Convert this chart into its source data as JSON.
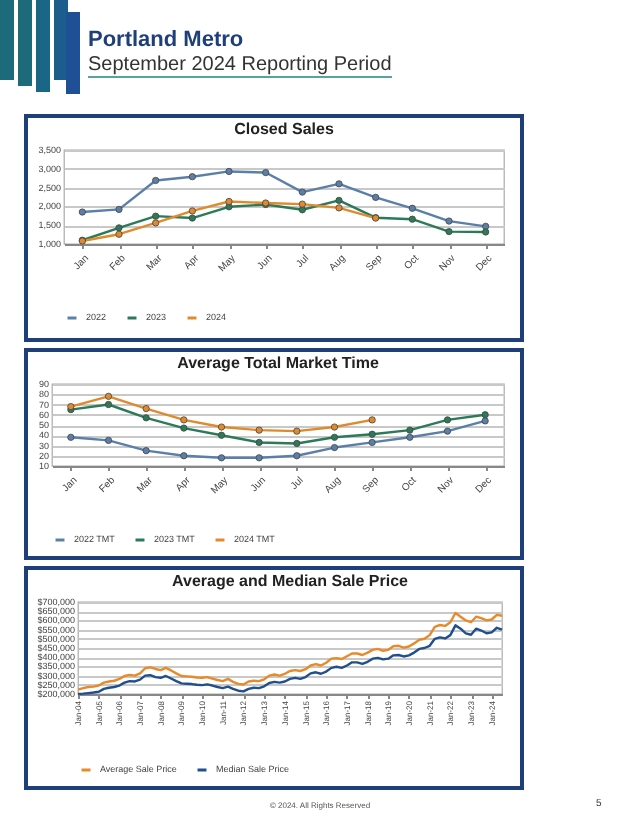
{
  "chart_data": [
    {
      "type": "line",
      "title": "Closed Sales",
      "annotations": [
        "Portland Metro",
        "September 2024 Reporting Period"
      ],
      "categories": [
        "Jan",
        "Feb",
        "Mar",
        "Apr",
        "May",
        "Jun",
        "Jul",
        "Aug",
        "Sep",
        "Oct",
        "Nov",
        "Dec"
      ],
      "series": [
        {
          "name": "2022",
          "color": "#5a7fa8",
          "values": [
            1850,
            1920,
            2690,
            2790,
            2930,
            2900,
            2380,
            2600,
            2240,
            1950,
            1610,
            1470
          ]
        },
        {
          "name": "2023",
          "color": "#2c7a57",
          "values": [
            1100,
            1430,
            1740,
            1690,
            1990,
            2050,
            1910,
            2160,
            1700,
            1660,
            1330,
            1320
          ]
        },
        {
          "name": "2024",
          "color": "#e08a2e",
          "values": [
            1080,
            1260,
            1560,
            1880,
            2130,
            2090,
            2060,
            1960,
            1690,
            null,
            null,
            null
          ]
        }
      ],
      "ylim": [
        1000,
        3500
      ],
      "yticks": [
        {
          "value": 1000,
          "label": "1,000"
        },
        {
          "value": 1500,
          "label": "1,500"
        },
        {
          "value": 2000,
          "label": "2,000"
        },
        {
          "value": 2500,
          "label": "2,500"
        },
        {
          "value": 3000,
          "label": "3,000"
        },
        {
          "value": 3500,
          "label": "3,500"
        }
      ],
      "grid": "y",
      "legend": "bottom",
      "marker": "circle",
      "line_style": "solid"
    },
    {
      "type": "line",
      "title": "Average Total Market Time",
      "categories": [
        "Jan",
        "Feb",
        "Mar",
        "Apr",
        "May",
        "Jun",
        "Jul",
        "Aug",
        "Sep",
        "Oct",
        "Nov",
        "Dec"
      ],
      "series": [
        {
          "name": "2022 TMT",
          "color": "#5a7fa8",
          "values": [
            38,
            35,
            25,
            20,
            18,
            18,
            20,
            28,
            33,
            38,
            44,
            54
          ]
        },
        {
          "name": "2023 TMT",
          "color": "#2c7a57",
          "values": [
            65,
            70,
            57,
            47,
            40,
            33,
            32,
            38,
            41,
            45,
            55,
            60
          ]
        },
        {
          "name": "2024 TMT",
          "color": "#e08a2e",
          "values": [
            68,
            78,
            66,
            55,
            48,
            45,
            44,
            48,
            55,
            null,
            null,
            null
          ]
        }
      ],
      "ylim": [
        10,
        90
      ],
      "yticks": [
        10,
        20,
        30,
        40,
        50,
        60,
        70,
        80,
        90
      ],
      "grid": "y",
      "legend": "bottom",
      "marker": "circle",
      "line_style": "solid"
    },
    {
      "type": "line",
      "title": "Average and Median Sale Price",
      "annotations": [
        "© 2024. All Rights Reserved",
        "5"
      ],
      "x": [
        "2004-01",
        "2004-04",
        "2004-07",
        "2004-10",
        "2005-01",
        "2005-04",
        "2005-07",
        "2005-10",
        "2006-01",
        "2006-04",
        "2006-07",
        "2006-10",
        "2007-01",
        "2007-04",
        "2007-07",
        "2007-10",
        "2008-01",
        "2008-04",
        "2008-07",
        "2008-10",
        "2009-01",
        "2009-04",
        "2009-07",
        "2009-10",
        "2010-01",
        "2010-04",
        "2010-07",
        "2010-10",
        "2011-01",
        "2011-04",
        "2011-07",
        "2011-10",
        "2012-01",
        "2012-04",
        "2012-07",
        "2012-10",
        "2013-01",
        "2013-04",
        "2013-07",
        "2013-10",
        "2014-01",
        "2014-04",
        "2014-07",
        "2014-10",
        "2015-01",
        "2015-04",
        "2015-07",
        "2015-10",
        "2016-01",
        "2016-04",
        "2016-07",
        "2016-10",
        "2017-01",
        "2017-04",
        "2017-07",
        "2017-10",
        "2018-01",
        "2018-04",
        "2018-07",
        "2018-10",
        "2019-01",
        "2019-04",
        "2019-07",
        "2019-10",
        "2020-01",
        "2020-04",
        "2020-07",
        "2020-10",
        "2021-01",
        "2021-04",
        "2021-07",
        "2021-10",
        "2022-01",
        "2022-04",
        "2022-07",
        "2022-10",
        "2023-01",
        "2023-04",
        "2023-07",
        "2023-10",
        "2024-01",
        "2024-04",
        "2024-07"
      ],
      "series": [
        {
          "name": "Average Sale Price",
          "color": "#e8892a",
          "values": [
            224000,
            232000,
            238000,
            240000,
            246000,
            262000,
            268000,
            272000,
            282000,
            298000,
            304000,
            300000,
            312000,
            340000,
            345000,
            336000,
            330000,
            342000,
            328000,
            312000,
            298000,
            296000,
            294000,
            290000,
            288000,
            292000,
            284000,
            276000,
            270000,
            282000,
            266000,
            255000,
            252000,
            268000,
            272000,
            270000,
            280000,
            300000,
            306000,
            300000,
            310000,
            325000,
            330000,
            325000,
            335000,
            355000,
            362000,
            355000,
            370000,
            392000,
            395000,
            390000,
            405000,
            420000,
            420000,
            412000,
            425000,
            440000,
            445000,
            435000,
            440000,
            460000,
            462000,
            452000,
            458000,
            475000,
            495000,
            500000,
            520000,
            565000,
            575000,
            570000,
            590000,
            640000,
            620000,
            600000,
            590000,
            620000,
            612000,
            600000,
            605000,
            630000,
            625000
          ]
        },
        {
          "name": "Median Sale Price",
          "color": "#1f4f8c",
          "values": [
            200000,
            202000,
            205000,
            208000,
            212000,
            228000,
            234000,
            238000,
            246000,
            262000,
            270000,
            268000,
            278000,
            300000,
            302000,
            292000,
            288000,
            298000,
            284000,
            270000,
            258000,
            256000,
            254000,
            250000,
            248000,
            252000,
            246000,
            238000,
            232000,
            240000,
            228000,
            218000,
            214000,
            228000,
            234000,
            232000,
            242000,
            260000,
            266000,
            262000,
            268000,
            282000,
            288000,
            282000,
            292000,
            312000,
            318000,
            310000,
            322000,
            342000,
            348000,
            342000,
            355000,
            372000,
            372000,
            364000,
            375000,
            392000,
            396000,
            388000,
            392000,
            410000,
            412000,
            404000,
            410000,
            425000,
            445000,
            450000,
            462000,
            500000,
            508000,
            502000,
            520000,
            573000,
            555000,
            530000,
            522000,
            555000,
            545000,
            530000,
            535000,
            560000,
            550000
          ]
        }
      ],
      "xlim": [
        "2004-01",
        "2024-07"
      ],
      "xticks": [
        {
          "value": "2004-01",
          "label": "Jan-04"
        },
        {
          "value": "2005-01",
          "label": "Jan-05"
        },
        {
          "value": "2006-01",
          "label": "Jan-06"
        },
        {
          "value": "2007-01",
          "label": "Jan-07"
        },
        {
          "value": "2008-01",
          "label": "Jan-08"
        },
        {
          "value": "2009-01",
          "label": "Jan-09"
        },
        {
          "value": "2010-01",
          "label": "Jan-10"
        },
        {
          "value": "2011-01",
          "label": "Jan-11"
        },
        {
          "value": "2012-01",
          "label": "Jan-12"
        },
        {
          "value": "2013-01",
          "label": "Jan-13"
        },
        {
          "value": "2014-01",
          "label": "Jan-14"
        },
        {
          "value": "2015-01",
          "label": "Jan-15"
        },
        {
          "value": "2016-01",
          "label": "Jan-16"
        },
        {
          "value": "2017-01",
          "label": "Jan-17"
        },
        {
          "value": "2018-01",
          "label": "Jan-18"
        },
        {
          "value": "2019-01",
          "label": "Jan-19"
        },
        {
          "value": "2020-01",
          "label": "Jan-20"
        },
        {
          "value": "2021-01",
          "label": "Jan-21"
        },
        {
          "value": "2022-01",
          "label": "Jan-22"
        },
        {
          "value": "2023-01",
          "label": "Jan-23"
        },
        {
          "value": "2024-01",
          "label": "Jan-24"
        }
      ],
      "ylim": [
        200000,
        700000
      ],
      "yticks": [
        {
          "value": 200000,
          "label": "$200,000"
        },
        {
          "value": 250000,
          "label": "$250,000"
        },
        {
          "value": 300000,
          "label": "$300,000"
        },
        {
          "value": 350000,
          "label": "$350,000"
        },
        {
          "value": 400000,
          "label": "$400,000"
        },
        {
          "value": 450000,
          "label": "$450,000"
        },
        {
          "value": 500000,
          "label": "$500,000"
        },
        {
          "value": 550000,
          "label": "$550,000"
        },
        {
          "value": 600000,
          "label": "$600,000"
        },
        {
          "value": 650000,
          "label": "$650,000"
        },
        {
          "value": 700000,
          "label": "$700,000"
        }
      ],
      "grid": "y",
      "legend": "bottom",
      "marker": "none",
      "line_style": "solid"
    }
  ]
}
